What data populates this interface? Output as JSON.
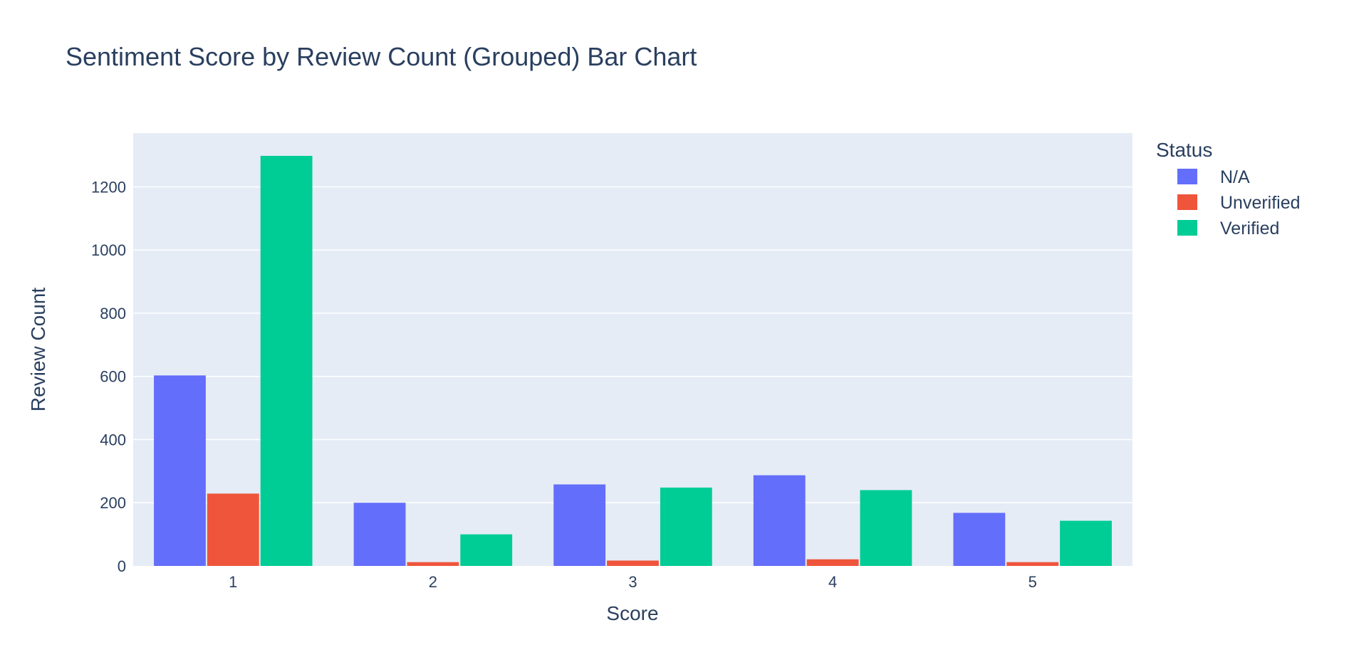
{
  "chart_data": {
    "type": "bar",
    "barmode": "group",
    "title": "Sentiment Score by Review Count (Grouped) Bar Chart",
    "xlabel": "Score",
    "ylabel": "Review Count",
    "categories": [
      "1",
      "2",
      "3",
      "4",
      "5"
    ],
    "ylim": [
      0,
      1370
    ],
    "yticks": [
      0,
      200,
      400,
      600,
      800,
      1000,
      1200
    ],
    "ytick_labels": [
      "0",
      "200",
      "400",
      "600",
      "800",
      "1000",
      "1200"
    ],
    "grid": true,
    "legend": {
      "title": "Status",
      "placement": "top-right, outside plot area"
    },
    "series": [
      {
        "name": "N/A",
        "color": "#636efa",
        "values": [
          603,
          200,
          258,
          287,
          168
        ]
      },
      {
        "name": "Unverified",
        "color": "#ef553b",
        "values": [
          229,
          12,
          17,
          21,
          12
        ]
      },
      {
        "name": "Verified",
        "color": "#00cc96",
        "values": [
          1298,
          100,
          248,
          240,
          143
        ]
      }
    ],
    "colors": {
      "plot_background": "#e5ecf6",
      "gridline": "#ffffff",
      "text": "#2a3f5f"
    }
  }
}
